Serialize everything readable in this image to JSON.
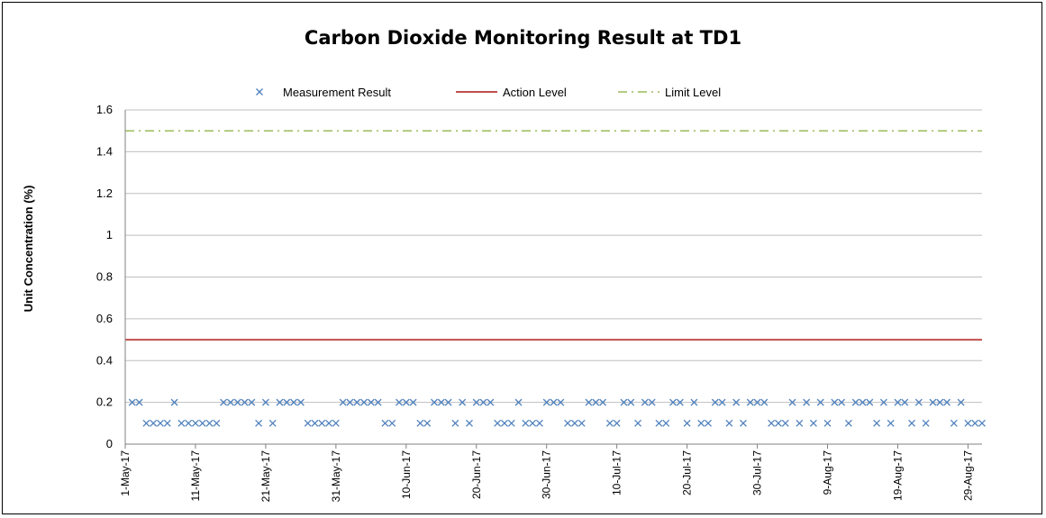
{
  "chart_data": {
    "type": "scatter",
    "title": "Carbon Dioxide Monitoring Result at TD1",
    "xlabel": "",
    "ylabel": "Unit Concentration (%)",
    "ylim": [
      0,
      1.6
    ],
    "y_ticks": [
      "0",
      "0.2",
      "0.4",
      "0.6",
      "0.8",
      "1",
      "1.2",
      "1.4",
      "1.6"
    ],
    "x_start": "2017-05-01",
    "x_end": "2017-08-31",
    "x_ticks": [
      {
        "date": "2017-05-01",
        "label": "1-May-17"
      },
      {
        "date": "2017-05-11",
        "label": "11-May-17"
      },
      {
        "date": "2017-05-21",
        "label": "21-May-17"
      },
      {
        "date": "2017-05-31",
        "label": "31-May-17"
      },
      {
        "date": "2017-06-10",
        "label": "10-Jun-17"
      },
      {
        "date": "2017-06-20",
        "label": "20-Jun-17"
      },
      {
        "date": "2017-06-30",
        "label": "30-Jun-17"
      },
      {
        "date": "2017-07-10",
        "label": "10-Jul-17"
      },
      {
        "date": "2017-07-20",
        "label": "20-Jul-17"
      },
      {
        "date": "2017-07-30",
        "label": "30-Jul-17"
      },
      {
        "date": "2017-08-09",
        "label": "9-Aug-17"
      },
      {
        "date": "2017-08-19",
        "label": "19-Aug-17"
      },
      {
        "date": "2017-08-29",
        "label": "29-Aug-17"
      }
    ],
    "grid": true,
    "legend_position": "top",
    "series": [
      {
        "name": "Measurement Result",
        "type": "scatter",
        "marker": "x",
        "color": "#4F81BD",
        "points": [
          [
            "2017-05-02",
            0.2
          ],
          [
            "2017-05-03",
            0.2
          ],
          [
            "2017-05-04",
            0.1
          ],
          [
            "2017-05-05",
            0.1
          ],
          [
            "2017-05-06",
            0.1
          ],
          [
            "2017-05-07",
            0.1
          ],
          [
            "2017-05-08",
            0.2
          ],
          [
            "2017-05-09",
            0.1
          ],
          [
            "2017-05-10",
            0.1
          ],
          [
            "2017-05-11",
            0.1
          ],
          [
            "2017-05-12",
            0.1
          ],
          [
            "2017-05-13",
            0.1
          ],
          [
            "2017-05-14",
            0.1
          ],
          [
            "2017-05-15",
            0.2
          ],
          [
            "2017-05-16",
            0.2
          ],
          [
            "2017-05-17",
            0.2
          ],
          [
            "2017-05-18",
            0.2
          ],
          [
            "2017-05-19",
            0.2
          ],
          [
            "2017-05-20",
            0.1
          ],
          [
            "2017-05-21",
            0.2
          ],
          [
            "2017-05-22",
            0.1
          ],
          [
            "2017-05-23",
            0.2
          ],
          [
            "2017-05-24",
            0.2
          ],
          [
            "2017-05-25",
            0.2
          ],
          [
            "2017-05-26",
            0.2
          ],
          [
            "2017-05-27",
            0.1
          ],
          [
            "2017-05-28",
            0.1
          ],
          [
            "2017-05-29",
            0.1
          ],
          [
            "2017-05-30",
            0.1
          ],
          [
            "2017-05-31",
            0.1
          ],
          [
            "2017-06-01",
            0.2
          ],
          [
            "2017-06-02",
            0.2
          ],
          [
            "2017-06-03",
            0.2
          ],
          [
            "2017-06-04",
            0.2
          ],
          [
            "2017-06-05",
            0.2
          ],
          [
            "2017-06-06",
            0.2
          ],
          [
            "2017-06-07",
            0.1
          ],
          [
            "2017-06-08",
            0.1
          ],
          [
            "2017-06-09",
            0.2
          ],
          [
            "2017-06-10",
            0.2
          ],
          [
            "2017-06-11",
            0.2
          ],
          [
            "2017-06-12",
            0.1
          ],
          [
            "2017-06-13",
            0.1
          ],
          [
            "2017-06-14",
            0.2
          ],
          [
            "2017-06-15",
            0.2
          ],
          [
            "2017-06-16",
            0.2
          ],
          [
            "2017-06-17",
            0.1
          ],
          [
            "2017-06-18",
            0.2
          ],
          [
            "2017-06-19",
            0.1
          ],
          [
            "2017-06-20",
            0.2
          ],
          [
            "2017-06-21",
            0.2
          ],
          [
            "2017-06-22",
            0.2
          ],
          [
            "2017-06-23",
            0.1
          ],
          [
            "2017-06-24",
            0.1
          ],
          [
            "2017-06-25",
            0.1
          ],
          [
            "2017-06-26",
            0.2
          ],
          [
            "2017-06-27",
            0.1
          ],
          [
            "2017-06-28",
            0.1
          ],
          [
            "2017-06-29",
            0.1
          ],
          [
            "2017-06-30",
            0.2
          ],
          [
            "2017-07-01",
            0.2
          ],
          [
            "2017-07-02",
            0.2
          ],
          [
            "2017-07-03",
            0.1
          ],
          [
            "2017-07-04",
            0.1
          ],
          [
            "2017-07-05",
            0.1
          ],
          [
            "2017-07-06",
            0.2
          ],
          [
            "2017-07-07",
            0.2
          ],
          [
            "2017-07-08",
            0.2
          ],
          [
            "2017-07-09",
            0.1
          ],
          [
            "2017-07-10",
            0.1
          ],
          [
            "2017-07-11",
            0.2
          ],
          [
            "2017-07-12",
            0.2
          ],
          [
            "2017-07-13",
            0.1
          ],
          [
            "2017-07-14",
            0.2
          ],
          [
            "2017-07-15",
            0.2
          ],
          [
            "2017-07-16",
            0.1
          ],
          [
            "2017-07-17",
            0.1
          ],
          [
            "2017-07-18",
            0.2
          ],
          [
            "2017-07-19",
            0.2
          ],
          [
            "2017-07-20",
            0.1
          ],
          [
            "2017-07-21",
            0.2
          ],
          [
            "2017-07-22",
            0.1
          ],
          [
            "2017-07-23",
            0.1
          ],
          [
            "2017-07-24",
            0.2
          ],
          [
            "2017-07-25",
            0.2
          ],
          [
            "2017-07-26",
            0.1
          ],
          [
            "2017-07-27",
            0.2
          ],
          [
            "2017-07-28",
            0.1
          ],
          [
            "2017-07-29",
            0.2
          ],
          [
            "2017-07-30",
            0.2
          ],
          [
            "2017-07-31",
            0.2
          ],
          [
            "2017-08-01",
            0.1
          ],
          [
            "2017-08-02",
            0.1
          ],
          [
            "2017-08-03",
            0.1
          ],
          [
            "2017-08-04",
            0.2
          ],
          [
            "2017-08-05",
            0.1
          ],
          [
            "2017-08-06",
            0.2
          ],
          [
            "2017-08-07",
            0.1
          ],
          [
            "2017-08-08",
            0.2
          ],
          [
            "2017-08-09",
            0.1
          ],
          [
            "2017-08-10",
            0.2
          ],
          [
            "2017-08-11",
            0.2
          ],
          [
            "2017-08-12",
            0.1
          ],
          [
            "2017-08-13",
            0.2
          ],
          [
            "2017-08-14",
            0.2
          ],
          [
            "2017-08-15",
            0.2
          ],
          [
            "2017-08-16",
            0.1
          ],
          [
            "2017-08-17",
            0.2
          ],
          [
            "2017-08-18",
            0.1
          ],
          [
            "2017-08-19",
            0.2
          ],
          [
            "2017-08-20",
            0.2
          ],
          [
            "2017-08-21",
            0.1
          ],
          [
            "2017-08-22",
            0.2
          ],
          [
            "2017-08-23",
            0.1
          ],
          [
            "2017-08-24",
            0.2
          ],
          [
            "2017-08-25",
            0.2
          ],
          [
            "2017-08-26",
            0.2
          ],
          [
            "2017-08-27",
            0.1
          ],
          [
            "2017-08-28",
            0.2
          ],
          [
            "2017-08-29",
            0.1
          ],
          [
            "2017-08-30",
            0.1
          ],
          [
            "2017-08-31",
            0.1
          ]
        ]
      },
      {
        "name": "Action Level",
        "type": "line",
        "style": "solid",
        "color": "#C0504D",
        "value": 0.5
      },
      {
        "name": "Limit Level",
        "type": "line",
        "style": "dash-dot",
        "color": "#9BBB59",
        "value": 1.5
      }
    ]
  }
}
